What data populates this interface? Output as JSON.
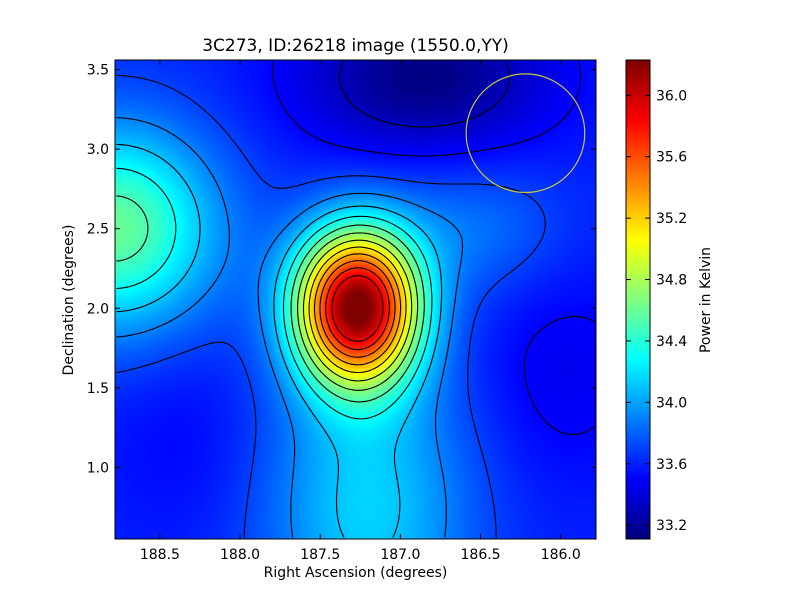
{
  "chart_data": {
    "type": "heatmap",
    "title": "3C273, ID:26218 image (1550.0,YY)",
    "xlabel": "Right Ascension (degrees)",
    "ylabel": "Declination (degrees)",
    "colorbar_label": "Power in Kelvin",
    "colormap": "jet",
    "xlim": [
      188.78,
      185.78
    ],
    "ylim": [
      0.55,
      3.56
    ],
    "x_ticks": [
      188.5,
      188.0,
      187.5,
      187.0,
      186.5,
      186.0
    ],
    "x_tick_labels": [
      "188.5",
      "188.0",
      "187.5",
      "187.0",
      "186.5",
      "186.0"
    ],
    "y_ticks": [
      1.0,
      1.5,
      2.0,
      2.5,
      3.0,
      3.5
    ],
    "y_tick_labels": [
      "1.0",
      "1.5",
      "2.0",
      "2.5",
      "3.0",
      "3.5"
    ],
    "colorbar_range": [
      33.11,
      36.23
    ],
    "colorbar_ticks": [
      33.2,
      33.6,
      34.0,
      34.4,
      34.8,
      35.2,
      35.6,
      36.0
    ],
    "colorbar_tick_labels": [
      "33.2",
      "33.6",
      "34.0",
      "34.4",
      "34.8",
      "35.2",
      "35.6",
      "36.0"
    ],
    "sources": [
      {
        "ra": 187.27,
        "dec": 2.01,
        "peak": 36.2,
        "description": "central maximum"
      },
      {
        "ra": 188.78,
        "dec": 2.5,
        "peak": 34.6,
        "description": "left edge secondary maximum"
      }
    ],
    "minima": [
      {
        "ra": 186.85,
        "dec": 3.45,
        "value": 33.12
      },
      {
        "ra": 188.35,
        "dec": 1.2,
        "value": 33.5
      }
    ],
    "background_level": 33.6,
    "contours": true,
    "beam_circle": {
      "ra": 186.22,
      "dec": 3.1,
      "radius_deg": 0.37,
      "color": "#c8c83c"
    }
  }
}
